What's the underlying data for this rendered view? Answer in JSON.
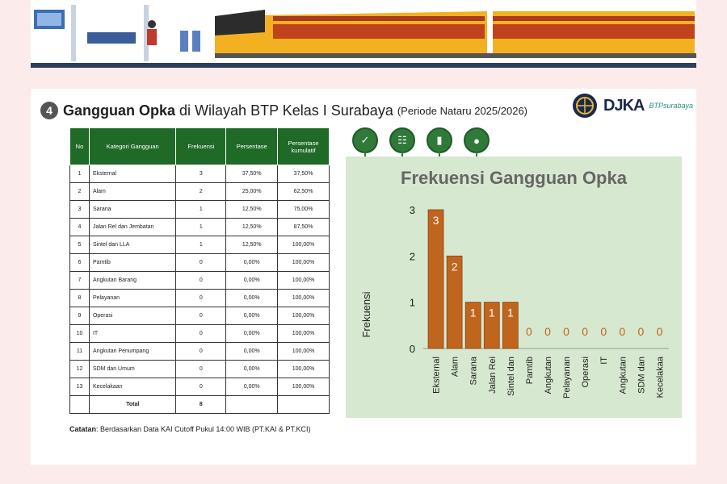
{
  "header": {
    "badge": "4",
    "title_bold": "Gangguan Opka",
    "title_rest": " di Wilayah BTP Kelas I Surabaya",
    "period": "(Periode Nataru 2025/2026)",
    "logo_djka": "DJKA",
    "logo_btp": "BTPsurabaya"
  },
  "table": {
    "headers": [
      "No",
      "Kategori Gangguan",
      "Frekuensi",
      "Persentase",
      "Persentase kumulatif"
    ],
    "rows": [
      [
        "1",
        "Eksternal",
        "3",
        "37,50%",
        "37,50%"
      ],
      [
        "2",
        "Alam",
        "2",
        "25,00%",
        "62,50%"
      ],
      [
        "3",
        "Sarana",
        "1",
        "12,50%",
        "75,00%"
      ],
      [
        "4",
        "Jalan Rel dan Jembatan",
        "1",
        "12,50%",
        "87,50%"
      ],
      [
        "5",
        "Sintel dan LLA",
        "1",
        "12,50%",
        "100,00%"
      ],
      [
        "6",
        "Pamtib",
        "0",
        "0,00%",
        "100,00%"
      ],
      [
        "7",
        "Angkutan Barang",
        "0",
        "0,00%",
        "100,00%"
      ],
      [
        "8",
        "Pelayanan",
        "0",
        "0,00%",
        "100,00%"
      ],
      [
        "9",
        "Operasi",
        "0",
        "0,00%",
        "100,00%"
      ],
      [
        "10",
        "IT",
        "0",
        "0,00%",
        "100,00%"
      ],
      [
        "11",
        "Angkutan Penumpang",
        "0",
        "0,00%",
        "100,00%"
      ],
      [
        "12",
        "SDM dan Umum",
        "0",
        "0,00%",
        "100,00%"
      ],
      [
        "13",
        "Kecelakaan",
        "0",
        "0,00%",
        "100,00%"
      ]
    ],
    "total_label": "Total",
    "total_value": "8"
  },
  "note": {
    "label": "Catatan",
    "text": ": Berdasarkan Data KAI Cutoff Pukul 14:00 WIB (PT.KAI & PT.KCI)"
  },
  "icons": [
    "check-circle-icon",
    "network-icon",
    "bar-chart-icon",
    "user-icon"
  ],
  "chart_data": {
    "type": "bar",
    "title": "Frekuensi Gangguan Opka",
    "xlabel": "",
    "ylabel": "Frekuensi",
    "ylim": [
      0,
      3
    ],
    "yticks": [
      0,
      1,
      2,
      3
    ],
    "categories": [
      "Eksternal",
      "Alam",
      "Sarana",
      "Jalan Rei",
      "Sintel dan",
      "Pamtib",
      "Angkutan",
      "Pelayanan",
      "Operasi",
      "IT",
      "Angkutan",
      "SDM dan",
      "Kecelakaa"
    ],
    "values": [
      3,
      2,
      1,
      1,
      1,
      0,
      0,
      0,
      0,
      0,
      0,
      0,
      0
    ],
    "bar_color": "#c0651e",
    "background": "#d6e8cf",
    "grid": false
  }
}
